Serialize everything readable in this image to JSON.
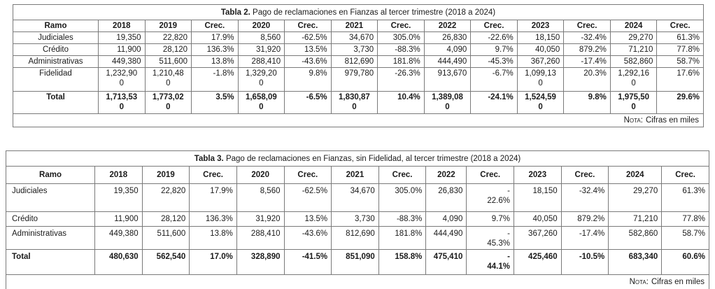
{
  "colors": {
    "border": "#7a7a7a",
    "text": "#1a1a1a",
    "background": "#ffffff"
  },
  "tables": [
    {
      "title_bold": "Tabla 2.",
      "title_rest": " Pago de reclamaciones en Fianzas al tercer trimestre (2018 a 2024)",
      "columns": [
        "Ramo",
        "2018",
        "2019",
        "Crec.",
        "2020",
        "Crec.",
        "2021",
        "Crec.",
        "2022",
        "Crec.",
        "2023",
        "Crec.",
        "2024",
        "Crec."
      ],
      "rows": [
        {
          "ramo": "Judiciales",
          "total": false,
          "values": [
            "19,350",
            "22,820",
            "17.9%",
            "8,560",
            "-62.5%",
            "34,670",
            "305.0%",
            "26,830",
            "-22.6%",
            "18,150",
            "-32.4%",
            "29,270",
            "61.3%"
          ]
        },
        {
          "ramo": "Crédito",
          "total": false,
          "values": [
            "11,900",
            "28,120",
            "136.3%",
            "31,920",
            "13.5%",
            "3,730",
            "-88.3%",
            "4,090",
            "9.7%",
            "40,050",
            "879.2%",
            "71,210",
            "77.8%"
          ]
        },
        {
          "ramo": "Administrativas",
          "total": false,
          "values": [
            "449,380",
            "511,600",
            "13.8%",
            "288,410",
            "-43.6%",
            "812,690",
            "181.8%",
            "444,490",
            "-45.3%",
            "367,260",
            "-17.4%",
            "582,860",
            "58.7%"
          ]
        },
        {
          "ramo": "Fidelidad",
          "total": false,
          "values": [
            "1,232,90\n0",
            "1,210,48\n0",
            "-1.8%",
            "1,329,20\n0",
            "9.8%",
            "979,780",
            "-26.3%",
            "913,670",
            "-6.7%",
            "1,099,13\n0",
            "20.3%",
            "1,292,16\n0",
            "17.6%"
          ]
        },
        {
          "ramo": "Total",
          "total": true,
          "values": [
            "1,713,53\n0",
            "1,773,02\n0",
            "3.5%",
            "1,658,09\n0",
            "-6.5%",
            "1,830,87\n0",
            "10.4%",
            "1,389,08\n0",
            "-24.1%",
            "1,524,59\n0",
            "9.8%",
            "1,975,50\n0",
            "29.6%"
          ]
        }
      ],
      "note_label": "Nota:",
      "note_text": "Cifras en miles"
    },
    {
      "title_bold": "Tabla 3.",
      "title_rest": " Pago de reclamaciones en Fianzas, sin Fidelidad, al tercer trimestre (2018 a 2024)",
      "columns": [
        "Ramo",
        "2018",
        "2019",
        "Crec.",
        "2020",
        "Crec.",
        "2021",
        "Crec.",
        "2022",
        "Crec.",
        "2023",
        "Crec.",
        "2024",
        "Crec."
      ],
      "rows": [
        {
          "ramo": "Judiciales",
          "total": false,
          "values": [
            "19,350",
            "22,820",
            "17.9%",
            "8,560",
            "-62.5%",
            "34,670",
            "305.0%",
            "26,830",
            "-\n22.6%",
            "18,150",
            "-32.4%",
            "29,270",
            "61.3%"
          ]
        },
        {
          "ramo": "Crédito",
          "total": false,
          "values": [
            "11,900",
            "28,120",
            "136.3%",
            "31,920",
            "13.5%",
            "3,730",
            "-88.3%",
            "4,090",
            "9.7%",
            "40,050",
            "879.2%",
            "71,210",
            "77.8%"
          ]
        },
        {
          "ramo": "Administrativas",
          "total": false,
          "values": [
            "449,380",
            "511,600",
            "13.8%",
            "288,410",
            "-43.6%",
            "812,690",
            "181.8%",
            "444,490",
            "-\n45.3%",
            "367,260",
            "-17.4%",
            "582,860",
            "58.7%"
          ]
        },
        {
          "ramo": "Total",
          "total": true,
          "values": [
            "480,630",
            "562,540",
            "17.0%",
            "328,890",
            "-41.5%",
            "851,090",
            "158.8%",
            "475,410",
            "-\n44.1%",
            "425,460",
            "-10.5%",
            "683,340",
            "60.6%"
          ]
        }
      ],
      "note_label": "Nota:",
      "note_text": "Cifras en miles"
    }
  ]
}
